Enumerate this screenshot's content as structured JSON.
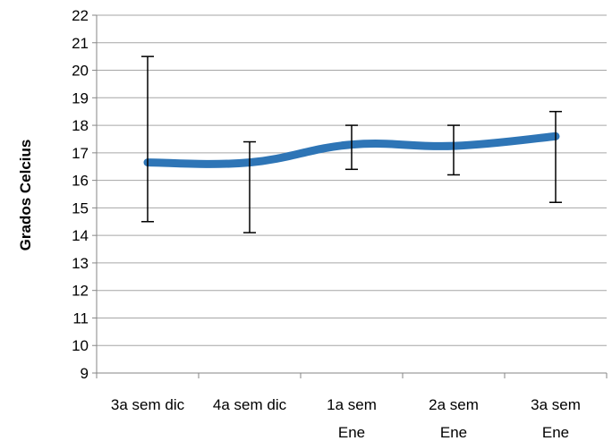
{
  "chart_data": {
    "type": "line",
    "title": "",
    "xlabel": "",
    "ylabel": "Grados Celcius",
    "ylim": [
      9,
      22
    ],
    "yticks": [
      9,
      10,
      11,
      12,
      13,
      14,
      15,
      16,
      17,
      18,
      19,
      20,
      21,
      22
    ],
    "grid": true,
    "categories": [
      [
        "3a sem dic"
      ],
      [
        "4a sem dic"
      ],
      [
        "1a sem",
        "Ene"
      ],
      [
        "2a sem",
        "Ene"
      ],
      [
        "3a sem",
        "Ene"
      ]
    ],
    "series": [
      {
        "name": "",
        "color": "#2e75b6",
        "smooth": true,
        "values": [
          16.65,
          16.65,
          17.3,
          17.25,
          17.6
        ],
        "error_upper": [
          20.5,
          17.4,
          18.0,
          18.0,
          18.5
        ],
        "error_lower": [
          14.5,
          14.1,
          16.4,
          16.2,
          15.2
        ]
      }
    ]
  }
}
